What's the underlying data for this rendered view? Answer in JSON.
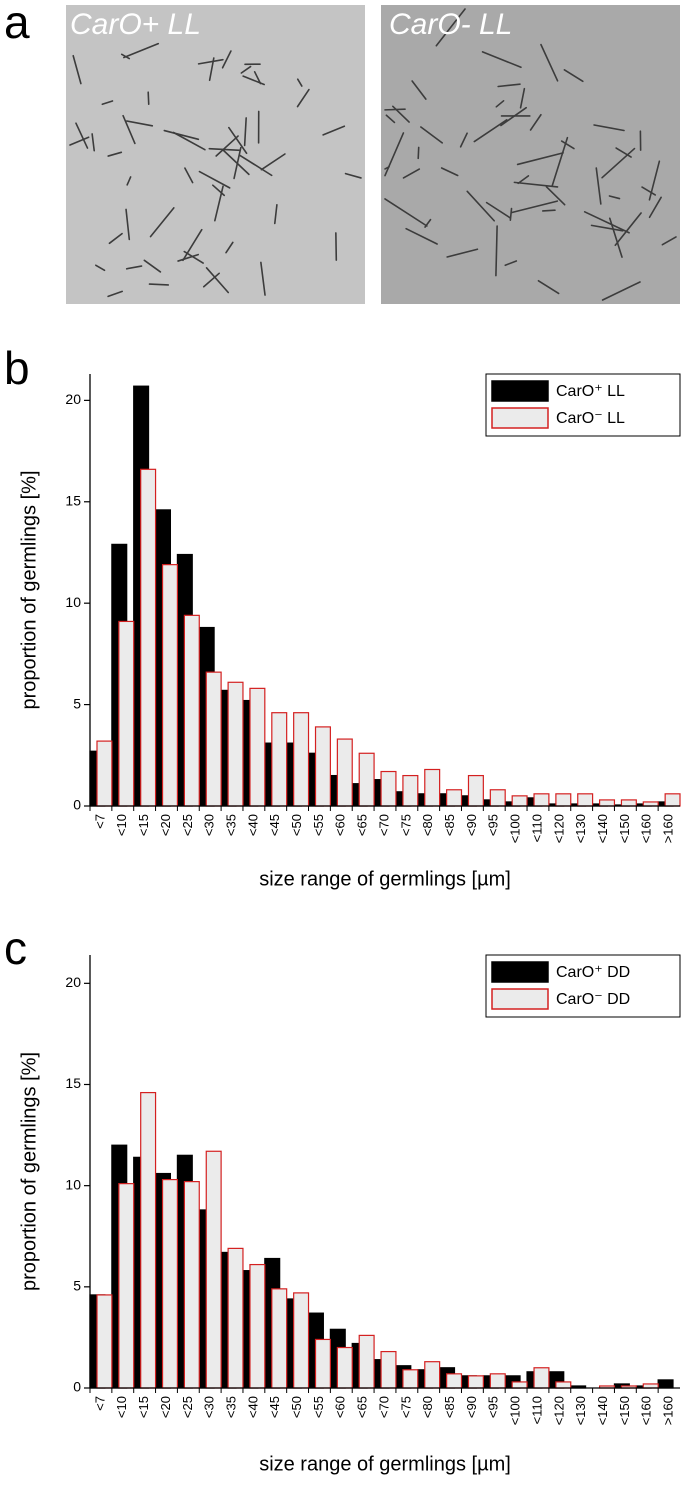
{
  "panel_labels": [
    "a",
    "b",
    "c"
  ],
  "images": [
    {
      "label": "CarO+ LL"
    },
    {
      "label": "CarO- LL"
    }
  ],
  "chart_data": [
    {
      "type": "bar",
      "ylabel": "proportion of germlings [%]",
      "xlabel": "size range of germlings [µm]",
      "categories": [
        "<7",
        "<10",
        "<15",
        "<20",
        "<25",
        "<30",
        "<35",
        "<40",
        "<45",
        "<50",
        "<55",
        "<60",
        "<65",
        "<70",
        "<75",
        "<80",
        "<85",
        "<90",
        "<95",
        "<100",
        "<110",
        "<120",
        "<130",
        "<140",
        "<150",
        "<160",
        ">160"
      ],
      "series": [
        {
          "name": "CarO⁺ LL",
          "color": "#000000",
          "edgecolor": "#000000",
          "values": [
            2.7,
            12.9,
            20.7,
            14.6,
            12.4,
            8.8,
            5.7,
            5.2,
            3.1,
            3.1,
            2.6,
            1.5,
            1.1,
            1.3,
            0.7,
            0.6,
            0.6,
            0.5,
            0.3,
            0.2,
            0.4,
            0.1,
            0.1,
            0.1,
            0.05,
            0.1,
            0.2
          ]
        },
        {
          "name": "CarO⁻ LL",
          "color": "#ebebeb",
          "edgecolor": "#d42020",
          "values": [
            3.2,
            9.1,
            16.6,
            11.9,
            9.4,
            6.6,
            6.1,
            5.8,
            4.6,
            4.6,
            3.9,
            3.3,
            2.6,
            1.7,
            1.5,
            1.8,
            0.8,
            1.5,
            0.8,
            0.5,
            0.6,
            0.6,
            0.6,
            0.3,
            0.3,
            0.2,
            0.6
          ]
        }
      ],
      "ylim": [
        0,
        21.3
      ],
      "yticks": [
        0,
        5,
        10,
        15,
        20
      ],
      "legend": "upper right"
    },
    {
      "type": "bar",
      "ylabel": "proportion of germlings [%]",
      "xlabel": "size range of germlings [µm]",
      "categories": [
        "<7",
        "<10",
        "<15",
        "<20",
        "<25",
        "<30",
        "<35",
        "<40",
        "<45",
        "<50",
        "<55",
        "<60",
        "<65",
        "<70",
        "<75",
        "<80",
        "<85",
        "<90",
        "<95",
        "<100",
        "<110",
        "<120",
        "<130",
        "<140",
        "<150",
        "<160",
        ">160"
      ],
      "series": [
        {
          "name": "CarO⁺ DD",
          "color": "#000000",
          "edgecolor": "#000000",
          "values": [
            4.6,
            12.0,
            11.4,
            10.6,
            11.5,
            8.8,
            6.7,
            5.8,
            6.4,
            4.4,
            3.7,
            2.9,
            2.2,
            1.4,
            1.1,
            0.9,
            1.0,
            0.6,
            0.6,
            0.6,
            0.8,
            0.8,
            0.1,
            0.0,
            0.2,
            0.1,
            0.4
          ]
        },
        {
          "name": "CarO⁻ DD",
          "color": "#ebebeb",
          "edgecolor": "#d42020",
          "values": [
            4.6,
            10.1,
            14.6,
            10.3,
            10.2,
            11.7,
            6.9,
            6.1,
            4.9,
            4.7,
            2.4,
            2.0,
            2.6,
            1.8,
            0.9,
            1.3,
            0.7,
            0.6,
            0.7,
            0.3,
            1.0,
            0.3,
            0.0,
            0.1,
            0.1,
            0.2,
            0.0
          ]
        }
      ],
      "ylim": [
        0,
        21.4
      ],
      "yticks": [
        0,
        5,
        10,
        15,
        20
      ],
      "legend": "upper right"
    }
  ]
}
